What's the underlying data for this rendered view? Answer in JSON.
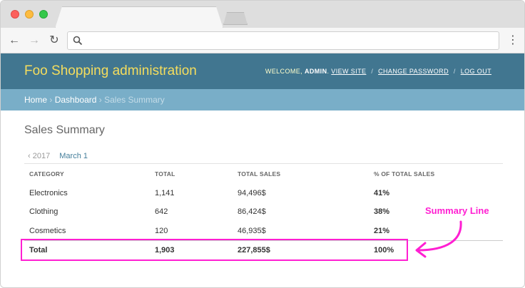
{
  "browser": {
    "address_value": "",
    "menu_icon": "more-vert-icon"
  },
  "header": {
    "brand": "Foo Shopping administration",
    "welcome_text": "WELCOME,",
    "username": "ADMIN",
    "links": {
      "view_site": "VIEW SITE",
      "change_password": "CHANGE PASSWORD",
      "log_out": "LOG OUT"
    },
    "separator": "/"
  },
  "breadcrumbs": {
    "home": "Home",
    "dashboard": "Dashboard",
    "current": "Sales Summary",
    "separator": "›"
  },
  "page": {
    "title": "Sales Summary"
  },
  "date_hierarchy": {
    "prev": "‹ 2017",
    "current": "March 1"
  },
  "table": {
    "headers": [
      "CATEGORY",
      "TOTAL",
      "TOTAL SALES",
      "% OF TOTAL SALES"
    ],
    "rows": [
      {
        "category": "Electronics",
        "total": "1,141",
        "total_sales": "94,496$",
        "pct": "41%"
      },
      {
        "category": "Clothing",
        "total": "642",
        "total_sales": "86,424$",
        "pct": "38%"
      },
      {
        "category": "Cosmetics",
        "total": "120",
        "total_sales": "46,935$",
        "pct": "21%"
      }
    ],
    "summary": {
      "category": "Total",
      "total": "1,903",
      "total_sales": "227,855$",
      "pct": "100%"
    }
  },
  "annotation": {
    "label": "Summary Line",
    "color": "#ff1fd2"
  },
  "colors": {
    "header_bg": "#417690",
    "brand_text": "#f5dd5d",
    "breadcrumb_bg": "#79aec8",
    "link": "#447e9b"
  }
}
